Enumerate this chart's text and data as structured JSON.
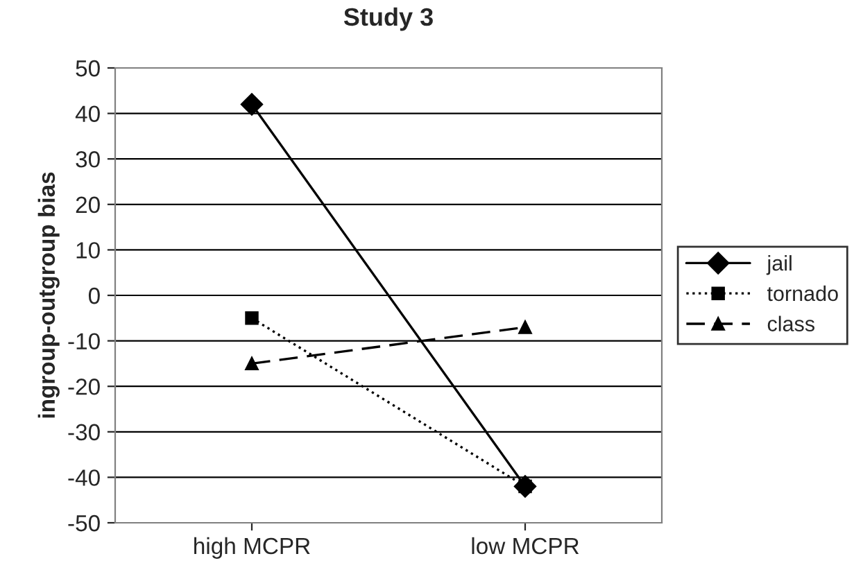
{
  "chart_data": {
    "type": "line",
    "title": "Study 3",
    "ylabel": "ingroup-outgroup bias",
    "categories": [
      "high MCPR",
      "low MCPR"
    ],
    "series": [
      {
        "name": "jail",
        "color": "#000000",
        "values": [
          42,
          -42
        ],
        "marker": "diamond",
        "line_style": "solid"
      },
      {
        "name": "tornado",
        "color": "#000000",
        "values": [
          -5,
          -42
        ],
        "marker": "square",
        "line_style": "dotted"
      },
      {
        "name": "class",
        "color": "#000000",
        "values": [
          -15,
          -7
        ],
        "marker": "triangle",
        "line_style": "dashed"
      }
    ],
    "ylim": [
      -50,
      50
    ],
    "yticks": [
      -50,
      -40,
      -30,
      -20,
      -10,
      0,
      10,
      20,
      30,
      40,
      50
    ],
    "grid": "y",
    "legend": "right"
  }
}
